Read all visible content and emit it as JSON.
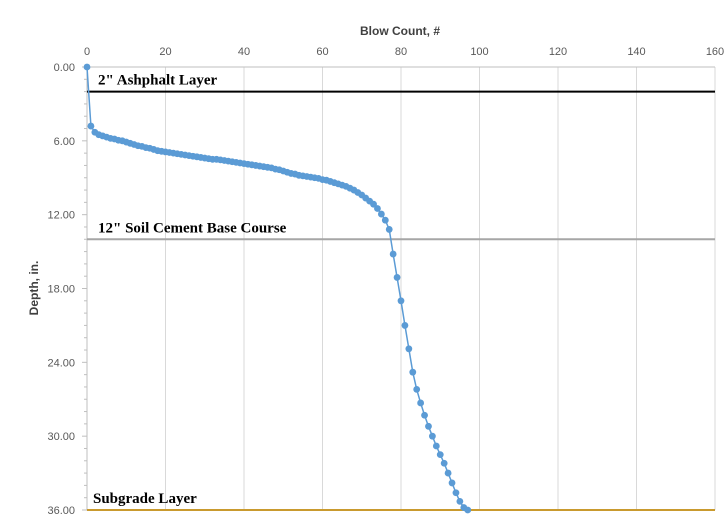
{
  "chart_data": {
    "type": "scatter",
    "title": "",
    "xlabel": "Blow Count, #",
    "ylabel": "Depth, in.",
    "xlim": [
      0,
      160
    ],
    "ylim": [
      36,
      0
    ],
    "x_axis_position": "top",
    "y_axis_reversed": true,
    "x_ticks": [
      "0",
      "20",
      "40",
      "60",
      "80",
      "100",
      "120",
      "140",
      "160"
    ],
    "y_ticks": [
      "0.00",
      "6.00",
      "12.00",
      "18.00",
      "24.00",
      "30.00",
      "36.00"
    ],
    "grid": {
      "vertical": true,
      "horizontal": false
    },
    "legend": "none",
    "series": [
      {
        "color": "#5B9BD5",
        "marker": "circle",
        "line": true,
        "x": [
          0,
          1,
          2,
          3,
          4,
          5,
          6,
          7,
          8,
          9,
          10,
          11,
          12,
          13,
          14,
          15,
          16,
          17,
          18,
          19,
          20,
          21,
          22,
          23,
          24,
          25,
          26,
          27,
          28,
          29,
          30,
          31,
          32,
          33,
          34,
          35,
          36,
          37,
          38,
          39,
          40,
          41,
          42,
          43,
          44,
          45,
          46,
          47,
          48,
          49,
          50,
          51,
          52,
          53,
          54,
          55,
          56,
          57,
          58,
          59,
          60,
          61,
          62,
          63,
          64,
          65,
          66,
          67,
          68,
          69,
          70,
          71,
          72,
          73,
          74,
          75,
          76,
          77,
          78,
          79,
          80,
          81,
          82,
          83,
          84,
          85,
          86,
          87,
          88,
          89,
          90,
          91,
          92,
          93,
          94,
          95,
          96,
          97
        ],
        "y": [
          0.0,
          4.8,
          5.3,
          5.5,
          5.6,
          5.7,
          5.8,
          5.85,
          5.95,
          6.0,
          6.1,
          6.2,
          6.3,
          6.4,
          6.45,
          6.55,
          6.6,
          6.7,
          6.8,
          6.85,
          6.9,
          6.95,
          7.0,
          7.05,
          7.1,
          7.15,
          7.2,
          7.25,
          7.3,
          7.35,
          7.4,
          7.45,
          7.5,
          7.5,
          7.55,
          7.6,
          7.65,
          7.7,
          7.75,
          7.8,
          7.85,
          7.9,
          7.95,
          8.0,
          8.05,
          8.1,
          8.15,
          8.2,
          8.3,
          8.35,
          8.45,
          8.55,
          8.65,
          8.7,
          8.8,
          8.85,
          8.9,
          8.95,
          9.0,
          9.05,
          9.15,
          9.2,
          9.3,
          9.4,
          9.5,
          9.6,
          9.7,
          9.85,
          10.0,
          10.2,
          10.4,
          10.65,
          10.9,
          11.15,
          11.5,
          11.95,
          12.45,
          13.2,
          15.2,
          17.1,
          19.0,
          21.0,
          22.9,
          24.8,
          26.2,
          27.3,
          28.3,
          29.2,
          30.0,
          30.8,
          31.5,
          32.2,
          33.0,
          33.8,
          34.6,
          35.3,
          35.8,
          36.0
        ]
      }
    ],
    "reference_lines": [
      {
        "label": "2\" Ashphalt Layer",
        "depth": 2,
        "color": "#000000"
      },
      {
        "label": "12\" Soil Cement Base Course",
        "depth": 14,
        "color": "#A6A6A6"
      },
      {
        "label": "Subgrade Layer",
        "depth": 36,
        "color": "#C99A2E"
      }
    ]
  }
}
